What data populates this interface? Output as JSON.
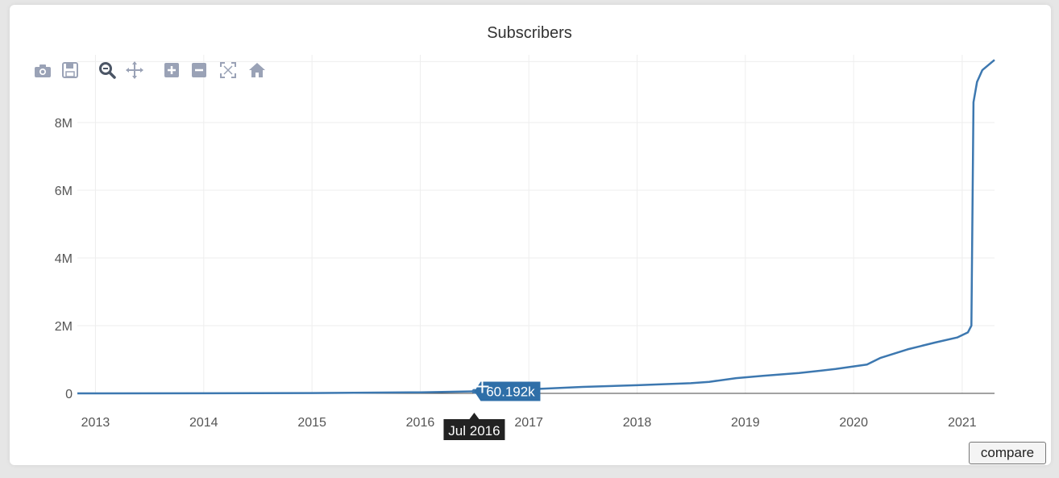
{
  "chart_data": {
    "type": "line",
    "title": "Subscribers",
    "xlabel": "",
    "ylabel": "",
    "x_range": [
      "2012-11-01",
      "2021-04-20"
    ],
    "ylim": [
      0,
      10000000
    ],
    "grid": true,
    "x_ticks": [
      "2013",
      "2014",
      "2015",
      "2016",
      "2017",
      "2018",
      "2019",
      "2020",
      "2021"
    ],
    "y_ticks": [
      {
        "value": 0,
        "label": "0"
      },
      {
        "value": 2000000,
        "label": "2M"
      },
      {
        "value": 4000000,
        "label": "4M"
      },
      {
        "value": 6000000,
        "label": "6M"
      },
      {
        "value": 8000000,
        "label": "8M"
      }
    ],
    "series": [
      {
        "color": "#3d78b0",
        "points": [
          {
            "x": "2012-11-01",
            "y": 0
          },
          {
            "x": "2014-01-01",
            "y": 2000
          },
          {
            "x": "2015-01-01",
            "y": 10000
          },
          {
            "x": "2016-01-01",
            "y": 30000
          },
          {
            "x": "2016-07-01",
            "y": 60192
          },
          {
            "x": "2017-01-01",
            "y": 120000
          },
          {
            "x": "2017-07-01",
            "y": 190000
          },
          {
            "x": "2018-01-01",
            "y": 240000
          },
          {
            "x": "2018-07-01",
            "y": 300000
          },
          {
            "x": "2018-09-01",
            "y": 340000
          },
          {
            "x": "2018-12-01",
            "y": 450000
          },
          {
            "x": "2019-03-01",
            "y": 520000
          },
          {
            "x": "2019-07-01",
            "y": 600000
          },
          {
            "x": "2019-11-01",
            "y": 720000
          },
          {
            "x": "2020-02-15",
            "y": 850000
          },
          {
            "x": "2020-04-01",
            "y": 1050000
          },
          {
            "x": "2020-07-01",
            "y": 1300000
          },
          {
            "x": "2020-10-01",
            "y": 1500000
          },
          {
            "x": "2020-12-15",
            "y": 1650000
          },
          {
            "x": "2021-01-20",
            "y": 1800000
          },
          {
            "x": "2021-02-01",
            "y": 2000000
          },
          {
            "x": "2021-02-08",
            "y": 8600000
          },
          {
            "x": "2021-02-20",
            "y": 9200000
          },
          {
            "x": "2021-03-10",
            "y": 9550000
          },
          {
            "x": "2021-04-20",
            "y": 9850000
          }
        ]
      }
    ],
    "hover": {
      "x": "2016-07-01",
      "y": 60192,
      "x_label": "Jul 2016",
      "value_label": "60.192k"
    }
  },
  "toolbar": {
    "icons": [
      "camera-icon",
      "save-icon",
      "zoom-icon",
      "pan-icon",
      "zoom-in-icon",
      "zoom-out-icon",
      "autoscale-icon",
      "reset-axes-icon"
    ]
  },
  "buttons": {
    "compare_label": "compare"
  }
}
